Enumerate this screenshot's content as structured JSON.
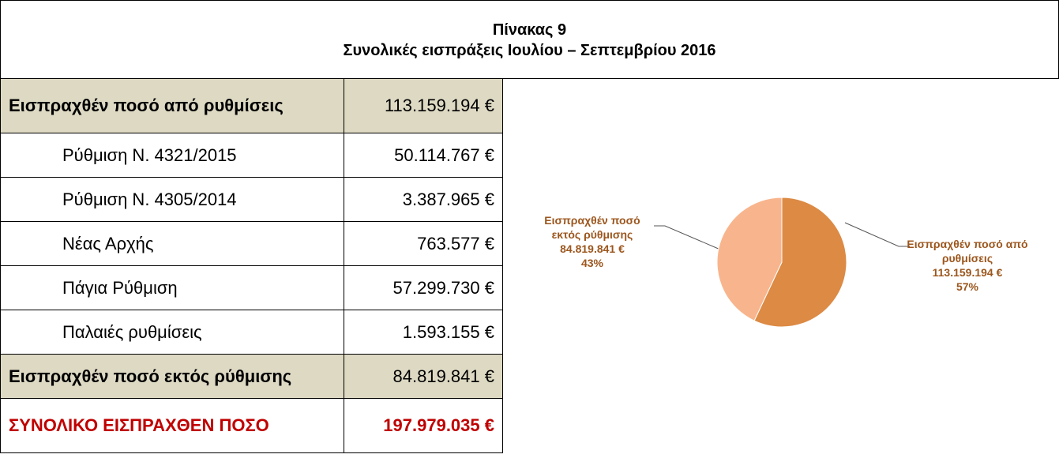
{
  "header": {
    "title": "Πίνακας 9",
    "subtitle": "Συνολικές εισπράξεις Ιουλίου – Σεπτεμβρίου 2016"
  },
  "table": {
    "rows": [
      [
        "Εισπραχθέν ποσό από ρυθμίσεις",
        "113.159.194 €"
      ],
      [
        "Ρύθμιση Ν. 4321/2015",
        "50.114.767 €"
      ],
      [
        "Ρύθμιση Ν. 4305/2014",
        "3.387.965 €"
      ],
      [
        "Νέας Αρχής",
        "763.577 €"
      ],
      [
        "Πάγια Ρύθμιση",
        "57.299.730 €"
      ],
      [
        "Παλαιές ρυθμίσεις",
        "1.593.155 €"
      ],
      [
        "Εισπραχθέν ποσό εκτός ρύθμισης",
        "84.819.841 €"
      ],
      [
        "ΣΥΝΟΛΙΚΟ ΕΙΣΠΡΑΧΘΕΝ ΠΟΣΟ",
        "197.979.035 €"
      ]
    ]
  },
  "chart_data": {
    "type": "pie",
    "categories": [
      "Εισπραχθέν ποσό από ρυθμίσεις",
      "Εισπραχθέν ποσό εκτός ρύθμισης"
    ],
    "values": [
      57,
      43
    ],
    "value_labels": [
      "57%",
      "43%"
    ],
    "amount_labels": [
      "113.159.194 €",
      "84.819.841 €"
    ],
    "colors": [
      "#dc8a44",
      "#f8b58d"
    ]
  }
}
